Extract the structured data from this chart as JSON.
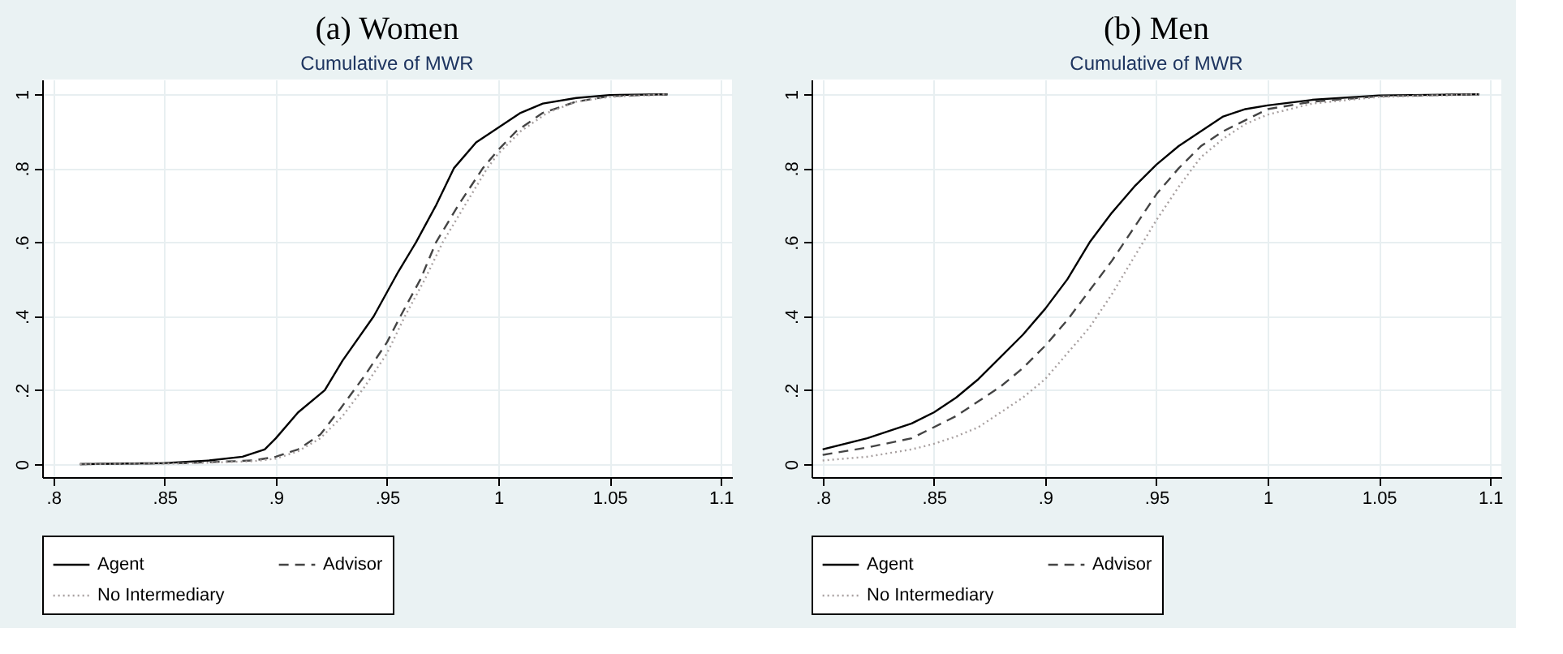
{
  "chart_data": [
    {
      "type": "line",
      "title": "(a) Women",
      "subtitle": "Cumulative of MWR",
      "xlim": [
        0.795,
        1.105
      ],
      "ylim": [
        -0.035,
        1.04
      ],
      "xticks": [
        {
          "value": 0.8,
          "label": ".8"
        },
        {
          "value": 0.85,
          "label": ".85"
        },
        {
          "value": 0.9,
          "label": ".9"
        },
        {
          "value": 0.95,
          "label": ".95"
        },
        1,
        1.05,
        1.1
      ],
      "yticks": [
        0,
        {
          "value": 0.2,
          "label": ".2"
        },
        {
          "value": 0.4,
          "label": ".4"
        },
        {
          "value": 0.6,
          "label": ".6"
        },
        {
          "value": 0.8,
          "label": ".8"
        },
        1
      ],
      "grid": true,
      "legend": "bottom",
      "series": [
        {
          "name": "Agent",
          "color": "#000000",
          "line_style": "solid",
          "x": [
            0.812,
            0.85,
            0.87,
            0.885,
            0.895,
            0.9,
            0.91,
            0.922,
            0.93,
            0.944,
            0.955,
            0.963,
            0.972,
            0.98,
            0.99,
            1.0,
            1.01,
            1.02,
            1.035,
            1.05,
            1.076
          ],
          "values": [
            0,
            0.003,
            0.01,
            0.02,
            0.04,
            0.07,
            0.14,
            0.2,
            0.28,
            0.4,
            0.52,
            0.6,
            0.7,
            0.8,
            0.87,
            0.91,
            0.95,
            0.975,
            0.99,
            0.998,
            1
          ]
        },
        {
          "name": "Advisor",
          "color": "#444444",
          "line_style": "dashed",
          "x": [
            0.812,
            0.86,
            0.89,
            0.9,
            0.91,
            0.92,
            0.929,
            0.94,
            0.95,
            0.956,
            0.965,
            0.972,
            0.982,
            0.993,
            1.0,
            1.008,
            1.02,
            1.035,
            1.05,
            1.076
          ],
          "values": [
            0,
            0.003,
            0.01,
            0.02,
            0.04,
            0.08,
            0.15,
            0.24,
            0.33,
            0.4,
            0.5,
            0.6,
            0.7,
            0.8,
            0.85,
            0.9,
            0.95,
            0.98,
            0.995,
            1
          ]
        },
        {
          "name": "No Intermediary",
          "color": "#a8a0a0",
          "line_style": "dotted",
          "x": [
            0.812,
            0.86,
            0.89,
            0.9,
            0.91,
            0.92,
            0.93,
            0.94,
            0.95,
            0.958,
            0.967,
            0.975,
            0.985,
            0.995,
            1.0,
            1.01,
            1.022,
            1.035,
            1.05,
            1.076
          ],
          "values": [
            0,
            0.002,
            0.008,
            0.015,
            0.035,
            0.07,
            0.13,
            0.21,
            0.3,
            0.4,
            0.5,
            0.6,
            0.7,
            0.8,
            0.84,
            0.9,
            0.95,
            0.98,
            0.993,
            1
          ]
        }
      ]
    },
    {
      "type": "line",
      "title": "(b) Men",
      "subtitle": "Cumulative of MWR",
      "xlim": [
        0.795,
        1.105
      ],
      "ylim": [
        -0.035,
        1.04
      ],
      "xticks": [
        {
          "value": 0.8,
          "label": ".8"
        },
        {
          "value": 0.85,
          "label": ".85"
        },
        {
          "value": 0.9,
          "label": ".9"
        },
        {
          "value": 0.95,
          "label": ".95"
        },
        1,
        1.05,
        1.1
      ],
      "yticks": [
        0,
        {
          "value": 0.2,
          "label": ".2"
        },
        {
          "value": 0.4,
          "label": ".4"
        },
        {
          "value": 0.6,
          "label": ".6"
        },
        {
          "value": 0.8,
          "label": ".8"
        },
        1
      ],
      "grid": true,
      "legend": "bottom",
      "series": [
        {
          "name": "Agent",
          "color": "#000000",
          "line_style": "solid",
          "x": [
            0.8,
            0.82,
            0.84,
            0.85,
            0.86,
            0.87,
            0.88,
            0.89,
            0.9,
            0.91,
            0.92,
            0.93,
            0.94,
            0.95,
            0.96,
            0.97,
            0.98,
            0.99,
            1.0,
            1.02,
            1.05,
            1.095
          ],
          "values": [
            0.04,
            0.07,
            0.11,
            0.14,
            0.18,
            0.23,
            0.29,
            0.35,
            0.42,
            0.5,
            0.6,
            0.68,
            0.75,
            0.81,
            0.86,
            0.9,
            0.94,
            0.96,
            0.97,
            0.985,
            0.997,
            1
          ]
        },
        {
          "name": "Advisor",
          "color": "#444444",
          "line_style": "dashed",
          "x": [
            0.8,
            0.82,
            0.84,
            0.85,
            0.86,
            0.87,
            0.88,
            0.89,
            0.9,
            0.91,
            0.92,
            0.93,
            0.94,
            0.95,
            0.96,
            0.97,
            0.98,
            0.99,
            1.0,
            1.02,
            1.05,
            1.095
          ],
          "values": [
            0.025,
            0.045,
            0.07,
            0.1,
            0.13,
            0.17,
            0.21,
            0.26,
            0.32,
            0.39,
            0.47,
            0.55,
            0.64,
            0.73,
            0.8,
            0.86,
            0.9,
            0.93,
            0.96,
            0.98,
            0.995,
            1
          ]
        },
        {
          "name": "No Intermediary",
          "color": "#a8a0a0",
          "line_style": "dotted",
          "x": [
            0.8,
            0.82,
            0.84,
            0.85,
            0.86,
            0.87,
            0.88,
            0.89,
            0.9,
            0.91,
            0.92,
            0.93,
            0.94,
            0.95,
            0.96,
            0.97,
            0.98,
            0.99,
            1.0,
            1.02,
            1.05,
            1.095
          ],
          "values": [
            0.01,
            0.02,
            0.04,
            0.055,
            0.075,
            0.1,
            0.14,
            0.18,
            0.23,
            0.3,
            0.37,
            0.46,
            0.56,
            0.66,
            0.75,
            0.83,
            0.88,
            0.92,
            0.945,
            0.975,
            0.993,
            1
          ]
        }
      ]
    }
  ]
}
